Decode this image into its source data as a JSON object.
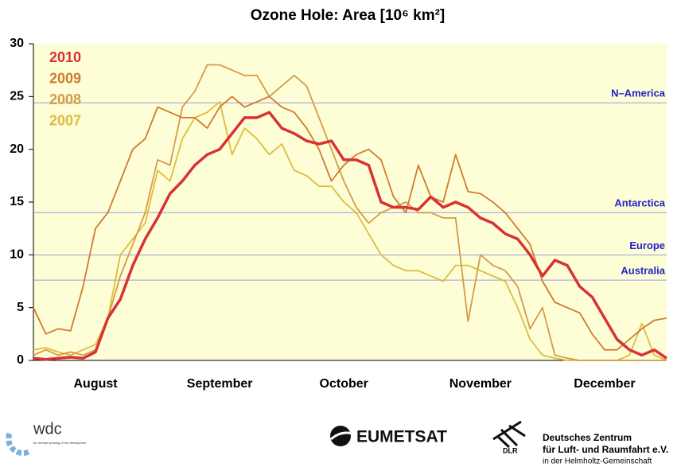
{
  "chart_data": {
    "type": "line",
    "title": "Ozone Hole: Area [10⁶ km²]",
    "categories": [
      null,
      null,
      null,
      null,
      null,
      "August",
      null,
      null,
      null,
      null,
      null,
      null,
      null,
      null,
      null,
      "September",
      null,
      null,
      null,
      null,
      null,
      null,
      null,
      null,
      null,
      "October",
      null,
      null,
      null,
      null,
      null,
      null,
      null,
      null,
      null,
      null,
      "November",
      null,
      null,
      null,
      null,
      null,
      null,
      null,
      null,
      null,
      "December",
      null,
      null,
      null,
      null,
      null
    ],
    "series": [
      {
        "name": "2010",
        "color": "#d83232",
        "values": [
          0.2,
          0.1,
          0.2,
          0.3,
          0.2,
          0.8,
          4,
          5.8,
          9,
          11.5,
          13.5,
          15.8,
          17,
          18.5,
          19.5,
          20,
          21.5,
          23,
          23,
          23.5,
          22,
          21.5,
          20.8,
          20.5,
          20.8,
          19,
          19,
          18.5,
          15,
          14.5,
          14.5,
          14.3,
          15.5,
          14.5,
          15,
          14.5,
          13.5,
          13,
          12,
          11.5,
          10,
          8,
          9.5,
          9,
          7,
          6,
          4,
          2,
          1,
          0.5,
          1,
          0.2
        ]
      },
      {
        "name": "2009",
        "color": "#d07a30",
        "values": [
          5,
          2.5,
          3,
          2.8,
          7,
          12.5,
          14,
          17,
          20,
          21,
          24,
          23.5,
          23,
          23,
          22,
          24,
          25,
          24,
          24.5,
          25,
          24,
          23.5,
          22,
          20,
          17,
          18.5,
          19.5,
          20,
          19,
          15.5,
          14,
          18.5,
          15.5,
          15,
          19.5,
          16,
          15.8,
          15,
          14,
          12.5,
          11,
          7.5,
          5.5,
          5,
          4.5,
          2.5,
          1,
          1,
          2,
          3,
          3.8,
          4
        ]
      },
      {
        "name": "2008",
        "color": "#d49a48",
        "values": [
          0.5,
          1,
          0.5,
          0.8,
          0.5,
          1,
          4,
          8,
          11,
          14,
          19,
          18.5,
          24,
          25.5,
          28,
          28,
          27.5,
          27,
          27,
          25,
          26,
          27,
          26,
          23,
          20,
          17,
          14.5,
          13,
          14,
          14.5,
          15,
          14,
          14,
          13.5,
          13.5,
          3.7,
          10,
          9,
          8.5,
          7,
          3,
          5,
          0.5,
          0.2,
          0,
          0,
          0,
          0,
          0,
          0,
          0,
          0
        ]
      },
      {
        "name": "2007",
        "color": "#dcbc40",
        "values": [
          1,
          1.2,
          0.8,
          0.5,
          1,
          1.5,
          4,
          10,
          11.5,
          13,
          18,
          17,
          21,
          23,
          23.5,
          24.5,
          19.5,
          22,
          21,
          19.5,
          20.5,
          18,
          17.5,
          16.5,
          16.5,
          15,
          14,
          12,
          10,
          9,
          8.5,
          8.5,
          8,
          7.5,
          9,
          9,
          8.5,
          8,
          7.5,
          5,
          2,
          0.5,
          0.2,
          0,
          0,
          0,
          0,
          0,
          0.5,
          3.5,
          0.5,
          0
        ]
      }
    ],
    "reference_lines": [
      {
        "label": "N–America",
        "value": 24.4
      },
      {
        "label": "Antarctica",
        "value": 14
      },
      {
        "label": "Europe",
        "value": 10
      },
      {
        "label": "Australia",
        "value": 7.6
      }
    ],
    "ylim": [
      0,
      30
    ],
    "yticks": [
      0,
      5,
      10,
      15,
      20,
      25,
      30
    ]
  },
  "logos": {
    "wdc": "wdc",
    "wdc_sub": "for remote sensing of the atmosphere",
    "eumetsat": "EUMETSAT",
    "dlr": "DLR",
    "dlr_line1": "Deutsches Zentrum",
    "dlr_line2": "für Luft- und Raumfahrt e.V.",
    "dlr_line3": "in der Helmholtz-Gemeinschaft"
  }
}
